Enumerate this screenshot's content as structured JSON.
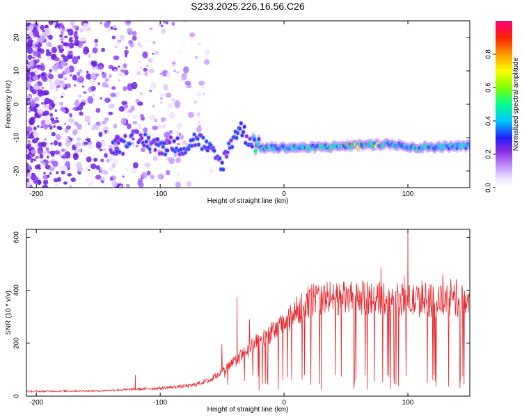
{
  "title": "S233.2025.226.16.56.C26",
  "chart_data": [
    {
      "type": "heatmap",
      "xlabel": "Height of straight line (km)",
      "ylabel": "Frequency (Hz)",
      "xlim": [
        -208,
        150
      ],
      "ylim": [
        -25,
        25
      ],
      "xticks": [
        -200,
        -100,
        0,
        100
      ],
      "yticks": [
        -20,
        -10,
        0,
        10,
        20
      ],
      "colorbar": {
        "label": "Normalized spectral amplitude",
        "range": [
          0,
          1
        ],
        "ticks": [
          "0.0",
          "0.2",
          "0.4",
          "0.6",
          "0.8"
        ]
      },
      "signal_track": {
        "x": [
          -130,
          -110,
          -100,
          -90,
          -80,
          -70,
          -60,
          -50,
          -40,
          -35,
          -30,
          -25,
          -20,
          0,
          20,
          50,
          80,
          95,
          100,
          150
        ],
        "frequency": [
          -10,
          -11,
          -13,
          -12,
          -13,
          -10,
          -14,
          -18,
          -9,
          -7,
          -10,
          -11,
          -13,
          -13,
          -13,
          -12.5,
          -12,
          -12,
          -13,
          -12.5
        ]
      }
    },
    {
      "type": "line",
      "xlabel": "Height of straight line (km)",
      "ylabel": "SNR (10 * v/v)",
      "xlim": [
        -208,
        150
      ],
      "ylim": [
        0,
        630
      ],
      "xticks": [
        -200,
        -100,
        0,
        100
      ],
      "yticks": [
        0,
        200,
        400,
        600
      ],
      "series": [
        {
          "name": "SNR",
          "color": "#e8262b",
          "envelope": {
            "x": [
              -208,
              -150,
              -100,
              -75,
              -60,
              -45,
              -35,
              -25,
              -10,
              0,
              10,
              20,
              30,
              50,
              80,
              100,
              150
            ],
            "y": [
              18,
              20,
              30,
              40,
              60,
              110,
              150,
              190,
              240,
              270,
              320,
              360,
              370,
              370,
              370,
              360,
              360
            ]
          },
          "peaks": [
            {
              "x": 100,
              "y": 630
            },
            {
              "x": 97,
              "y": 455
            },
            {
              "x": -38,
              "y": 375
            },
            {
              "x": 30,
              "y": 415
            },
            {
              "x": -120,
              "y": 80
            }
          ]
        }
      ]
    }
  ]
}
